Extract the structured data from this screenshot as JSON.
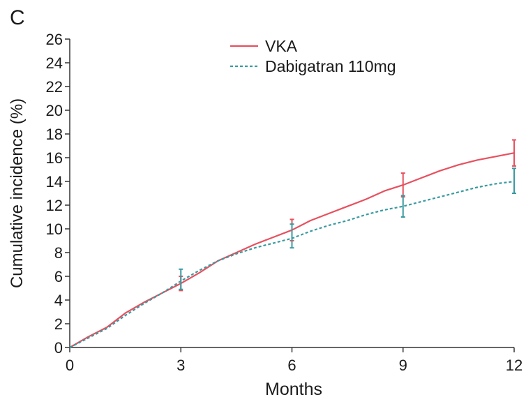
{
  "panel_label": "C",
  "chart_data": {
    "type": "line",
    "title": "",
    "xlabel": "Months",
    "ylabel": "Cumulative incidence (%)",
    "xlim": [
      0,
      12
    ],
    "ylim": [
      0,
      26
    ],
    "xticks": [
      0,
      3,
      6,
      9,
      12
    ],
    "yticks": [
      0,
      2,
      4,
      6,
      8,
      10,
      12,
      14,
      16,
      18,
      20,
      22,
      24,
      26
    ],
    "grid": false,
    "legend_position": "top-center",
    "series": [
      {
        "name": "VKA",
        "color": "#e8505e",
        "line_style": "solid",
        "points": [
          [
            0,
            0
          ],
          [
            0.5,
            0.9
          ],
          [
            1,
            1.7
          ],
          [
            1.5,
            2.9
          ],
          [
            2,
            3.8
          ],
          [
            2.5,
            4.6
          ],
          [
            3,
            5.4
          ],
          [
            3.5,
            6.3
          ],
          [
            4,
            7.3
          ],
          [
            4.5,
            8.0
          ],
          [
            5,
            8.7
          ],
          [
            5.5,
            9.3
          ],
          [
            6,
            9.9
          ],
          [
            6.5,
            10.7
          ],
          [
            7,
            11.3
          ],
          [
            7.5,
            11.9
          ],
          [
            8,
            12.5
          ],
          [
            8.5,
            13.2
          ],
          [
            9,
            13.7
          ],
          [
            9.5,
            14.3
          ],
          [
            10,
            14.9
          ],
          [
            10.5,
            15.4
          ],
          [
            11,
            15.8
          ],
          [
            11.5,
            16.1
          ],
          [
            12,
            16.4
          ]
        ],
        "error_bars": [
          {
            "x": 3,
            "y": 5.4,
            "low": 4.8,
            "high": 6.0
          },
          {
            "x": 6,
            "y": 9.9,
            "low": 9.0,
            "high": 10.8
          },
          {
            "x": 9,
            "y": 13.7,
            "low": 12.7,
            "high": 14.7
          },
          {
            "x": 12,
            "y": 16.4,
            "low": 15.3,
            "high": 17.5
          }
        ]
      },
      {
        "name": "Dabigatran 110mg",
        "color": "#3a9aa0",
        "line_style": "dashed",
        "points": [
          [
            0,
            0
          ],
          [
            0.5,
            0.8
          ],
          [
            1,
            1.6
          ],
          [
            1.5,
            2.7
          ],
          [
            2,
            3.7
          ],
          [
            2.5,
            4.6
          ],
          [
            3,
            5.6
          ],
          [
            3.5,
            6.5
          ],
          [
            4,
            7.3
          ],
          [
            4.5,
            7.9
          ],
          [
            5,
            8.4
          ],
          [
            5.5,
            8.8
          ],
          [
            6,
            9.2
          ],
          [
            6.5,
            9.8
          ],
          [
            7,
            10.3
          ],
          [
            7.5,
            10.7
          ],
          [
            8,
            11.2
          ],
          [
            8.5,
            11.6
          ],
          [
            9,
            11.9
          ],
          [
            9.5,
            12.3
          ],
          [
            10,
            12.7
          ],
          [
            10.5,
            13.1
          ],
          [
            11,
            13.5
          ],
          [
            11.5,
            13.8
          ],
          [
            12,
            14.0
          ]
        ],
        "error_bars": [
          {
            "x": 3,
            "y": 5.6,
            "low": 4.9,
            "high": 6.6
          },
          {
            "x": 6,
            "y": 9.2,
            "low": 8.4,
            "high": 10.4
          },
          {
            "x": 9,
            "y": 11.9,
            "low": 11.0,
            "high": 12.8
          },
          {
            "x": 12,
            "y": 14.0,
            "low": 13.0,
            "high": 15.1
          }
        ]
      }
    ]
  }
}
